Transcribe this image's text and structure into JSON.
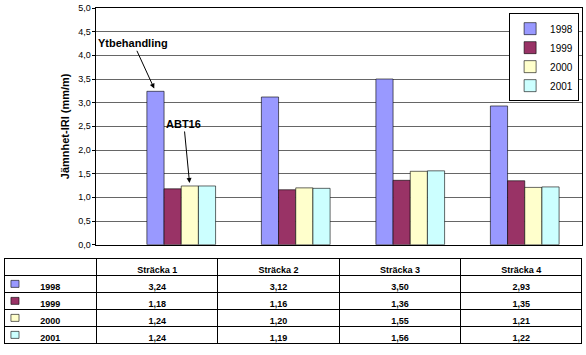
{
  "chart_data": {
    "type": "bar",
    "ylabel": "Jämnhet-IRI (mm/m)",
    "categories": [
      "Sträcka 1",
      "Sträcka 2",
      "Sträcka 3",
      "Sträcka 4"
    ],
    "series": [
      {
        "name": "1998",
        "color": "#9999ff",
        "values": [
          3.24,
          3.12,
          3.5,
          2.93
        ],
        "value_labels": [
          "3,24",
          "3,12",
          "3,50",
          "2,93"
        ]
      },
      {
        "name": "1999",
        "color": "#993366",
        "values": [
          1.18,
          1.16,
          1.36,
          1.35
        ],
        "value_labels": [
          "1,18",
          "1,16",
          "1,36",
          "1,35"
        ]
      },
      {
        "name": "2000",
        "color": "#ffffcc",
        "values": [
          1.24,
          1.2,
          1.55,
          1.21
        ],
        "value_labels": [
          "1,24",
          "1,20",
          "1,55",
          "1,21"
        ]
      },
      {
        "name": "2001",
        "color": "#ccffff",
        "values": [
          1.24,
          1.19,
          1.56,
          1.22
        ],
        "value_labels": [
          "1,24",
          "1,19",
          "1,56",
          "1,22"
        ]
      }
    ],
    "ylim": [
      0,
      5
    ],
    "yticks": [
      {
        "value": 0,
        "label": "0,0"
      },
      {
        "value": 0.5,
        "label": "0,5"
      },
      {
        "value": 1,
        "label": "1,0"
      },
      {
        "value": 1.5,
        "label": "1,5"
      },
      {
        "value": 2,
        "label": "2,0"
      },
      {
        "value": 2.5,
        "label": "2,5"
      },
      {
        "value": 3,
        "label": "3,0"
      },
      {
        "value": 3.5,
        "label": "3,5"
      },
      {
        "value": 4,
        "label": "4,0"
      },
      {
        "value": 4.5,
        "label": "4,5"
      },
      {
        "value": 5,
        "label": "5,0"
      }
    ],
    "grid": true,
    "legend": "top right",
    "annotations": [
      {
        "text": "Ytbehandling",
        "category": "Sträcka 1",
        "series": "1998"
      },
      {
        "text": "ABT16",
        "category": "Sträcka 1",
        "series": "2000"
      }
    ]
  }
}
